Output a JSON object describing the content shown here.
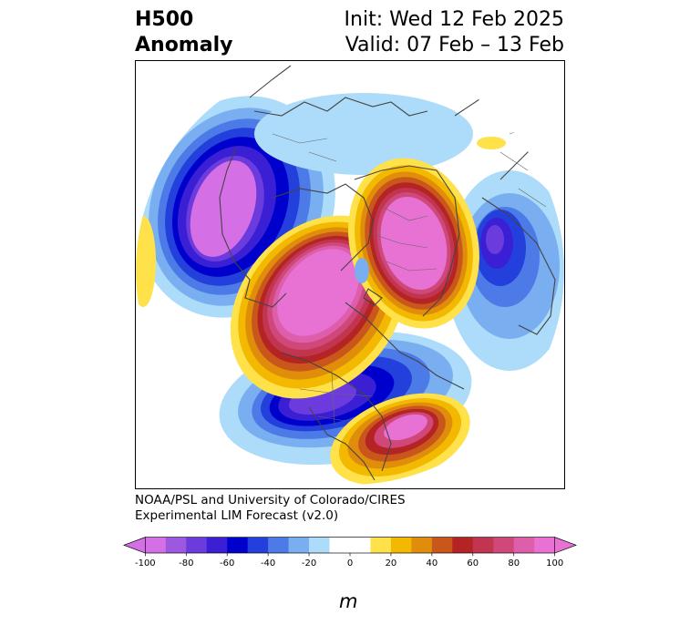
{
  "header": {
    "left_line1": "H500",
    "left_line2": "Anomaly",
    "right_line1": "Init: Wed 12 Feb 2025",
    "right_line2": "Valid: 07 Feb – 13 Feb"
  },
  "credit": {
    "line1": "NOAA/PSL and University of Colorado/CIRES",
    "line2": "Experimental LIM Forecast (v2.0)"
  },
  "colorbar": {
    "unit": "m",
    "ticks": [
      "-100",
      "-80",
      "-60",
      "-40",
      "-20",
      "0",
      "20",
      "40",
      "60",
      "80",
      "100"
    ],
    "colors": [
      "#d56fe5",
      "#9e58e0",
      "#6b3bde",
      "#3a1fd4",
      "#0000cc",
      "#2340dc",
      "#4c7be7",
      "#79aef0",
      "#acdcfa",
      "#ffffff",
      "#ffffff",
      "#ffe14a",
      "#f3b800",
      "#e08d0c",
      "#c9561a",
      "#b52424",
      "#c23550",
      "#d0487a",
      "#dd5fac",
      "#e772d4"
    ]
  },
  "map": {
    "features": [
      "positive-anomaly-alaska",
      "positive-anomaly-greenland",
      "positive-anomaly-atlantic",
      "positive-anomaly-pacific",
      "negative-anomaly-siberia",
      "negative-anomaly-eurasia",
      "negative-anomaly-north-america"
    ]
  }
}
